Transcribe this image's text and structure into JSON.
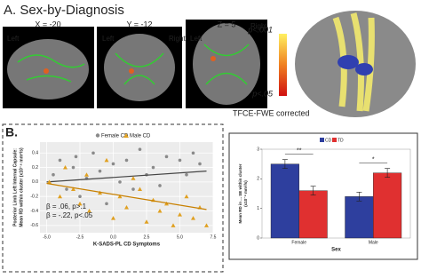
{
  "panel_a": {
    "title": "A. Sex-by-Diagnosis",
    "slices": [
      {
        "coord": "X = -20",
        "left": "Left",
        "right": null
      },
      {
        "coord": "Y = -12",
        "left": "Left",
        "right": "Right"
      },
      {
        "coord": "Z = 5",
        "left": "Left",
        "right": "Right"
      }
    ],
    "colorbar_top": "p<.001",
    "colorbar_bottom": "p<.05",
    "correction": "TFCE-FWE corrected"
  },
  "panel_b_label": "B.",
  "chart_data": [
    {
      "type": "scatter",
      "xlabel": "K-SADS-PL CD Symptoms",
      "ylabel": [
        "Posterior Limb Left Internal Capsule:",
        "Mean RD within cluster (x10⁻⁴ mm²/s)"
      ],
      "xlim": [
        -5.5,
        7.5
      ],
      "xticks": [
        {
          "value": -5,
          "label": "-5.0"
        },
        -2.5,
        {
          "value": 0,
          "label": "0.0"
        },
        2.5,
        {
          "value": 5,
          "label": "5.0"
        },
        7.5
      ],
      "ylim": [
        -0.7,
        0.55
      ],
      "yticks": [
        0.4,
        0.2,
        {
          "value": 0,
          "label": "0.0"
        },
        -0.2,
        -0.4,
        -0.6
      ],
      "grid": true,
      "series": [
        {
          "name": "Female CD",
          "color": "#8a8a8a",
          "marker": "circle",
          "x": [
            -4.5,
            -4,
            -3.5,
            -3,
            -2.8,
            -2.5,
            -2,
            -1.5,
            -1,
            -0.5,
            0,
            0.5,
            1,
            1.5,
            2,
            2.5,
            3,
            3.5,
            4,
            5,
            5.5,
            6,
            6.5
          ],
          "y": [
            0.1,
            0.3,
            -0.1,
            0.2,
            0.35,
            -0.2,
            0.05,
            0.4,
            0.15,
            -0.3,
            0.25,
            0.0,
            0.3,
            -0.1,
            0.45,
            0.1,
            0.2,
            -0.05,
            0.35,
            0.3,
            0.1,
            0.4,
            0.25
          ],
          "fit": {
            "x": [
              -5,
              7
            ],
            "y": [
              0.0,
              0.15
            ]
          }
        },
        {
          "name": "Male CD",
          "color": "#e0a020",
          "marker": "triangle",
          "x": [
            -4.8,
            -4,
            -3.6,
            -3,
            -2.5,
            -2,
            -1.8,
            -1,
            -0.5,
            0,
            0.5,
            1,
            1.5,
            2,
            2.5,
            3,
            3.5,
            4,
            4.5,
            5,
            5.5,
            6,
            6.5,
            7
          ],
          "y": [
            0.0,
            -0.2,
            0.2,
            -0.1,
            -0.3,
            0.1,
            -0.4,
            -0.15,
            0.3,
            -0.5,
            -0.2,
            -0.35,
            0.05,
            -0.1,
            -0.55,
            -0.25,
            -0.4,
            -0.3,
            -0.6,
            -0.45,
            -0.2,
            -0.5,
            -0.35,
            -0.6
          ],
          "fit": {
            "x": [
              -5,
              7
            ],
            "y": [
              -0.02,
              -0.38
            ]
          }
        }
      ],
      "annotations": [
        {
          "text": "β = .06, p>.1",
          "color": "#8a8a8a"
        },
        {
          "text": "β = -.22, p<.05",
          "color": "#e0a020"
        }
      ]
    },
    {
      "type": "bar",
      "xlabel": "Sex",
      "ylabel": [
        "Mean RD in ... SE within cluster",
        "(x10⁻⁴ mm²/s)"
      ],
      "categories": [
        "Female",
        "Male"
      ],
      "ylim": [
        0,
        3
      ],
      "yticks": [
        0,
        1,
        2,
        3
      ],
      "series": [
        {
          "name": "CD",
          "color": "#2e3f9e",
          "values": [
            2.5,
            1.4
          ],
          "errors": [
            0.15,
            0.15
          ]
        },
        {
          "name": "TD",
          "color": "#e03030",
          "values": [
            1.6,
            2.2
          ],
          "errors": [
            0.15,
            0.15
          ]
        }
      ],
      "significance": [
        "**",
        "*"
      ]
    }
  ]
}
